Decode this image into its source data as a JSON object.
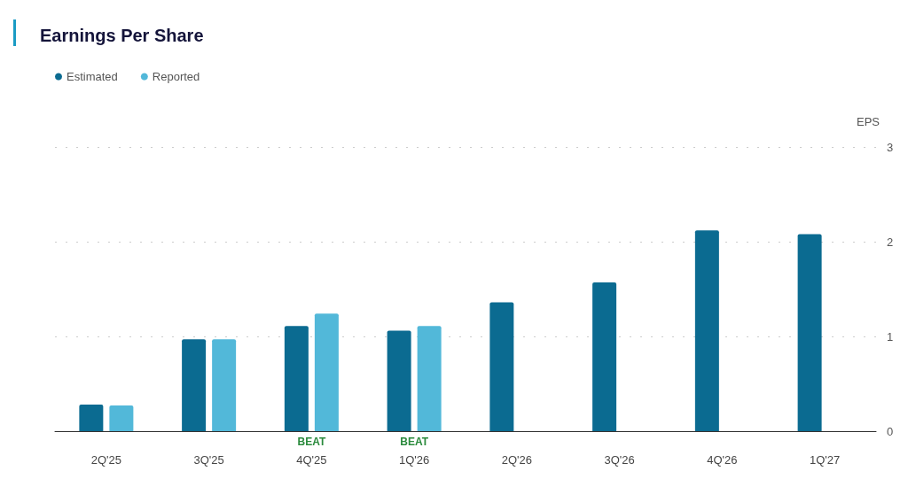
{
  "chart_data": {
    "type": "bar",
    "title": "Earnings Per Share",
    "ylabel": "EPS",
    "categories": [
      "2Q'25",
      "3Q'25",
      "4Q'25",
      "1Q'26",
      "2Q'26",
      "3Q'26",
      "4Q'26",
      "1Q'27"
    ],
    "series": [
      {
        "name": "Estimated",
        "color": "#0b6b91",
        "values": [
          0.28,
          0.97,
          1.11,
          1.06,
          1.36,
          1.57,
          2.12,
          2.08
        ]
      },
      {
        "name": "Reported",
        "color": "#52b8d9",
        "values": [
          0.27,
          0.97,
          1.24,
          1.11,
          null,
          null,
          null,
          null
        ]
      }
    ],
    "ylim": [
      0,
      3
    ],
    "yticks": [
      0,
      1,
      2,
      3
    ],
    "grid": "y",
    "legend": "top left",
    "annotations": [
      "BEAT",
      "BEAT"
    ]
  }
}
